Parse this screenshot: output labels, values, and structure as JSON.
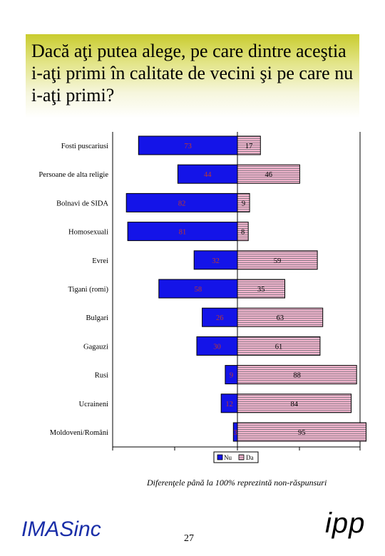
{
  "title": "Dacă aţi putea alege, pe care dintre aceştia i-aţi primi în calitate de vecini şi pe care nu i-aţi primi?",
  "note": "Diferenţele până la 100% reprezintă non-răspunsuri",
  "brand": "IMASinc",
  "page_number": "27",
  "logo": "ipp",
  "colors": {
    "nu": "#1414e8",
    "da": "#f4b6cf",
    "title_bg": "#c9cc2e"
  },
  "chart_data": {
    "type": "bar",
    "orientation": "horizontal-diverging",
    "categories": [
      "Fosti puscariusi",
      "Persoane de alta religie",
      "Bolnavi de SIDA",
      "Homosexuali",
      "Evrei",
      "Tigani (romi)",
      "Bulgari",
      "Gagauzi",
      "Rusi",
      "Ucraineni",
      "Moldoveni/Români"
    ],
    "series": [
      {
        "name": "Nu",
        "values": [
          73,
          44,
          82,
          81,
          32,
          58,
          26,
          30,
          9,
          12,
          3
        ]
      },
      {
        "name": "Da",
        "values": [
          17,
          46,
          9,
          8,
          59,
          35,
          63,
          61,
          88,
          84,
          95
        ]
      }
    ],
    "legend_position": "bottom",
    "grid": false
  }
}
